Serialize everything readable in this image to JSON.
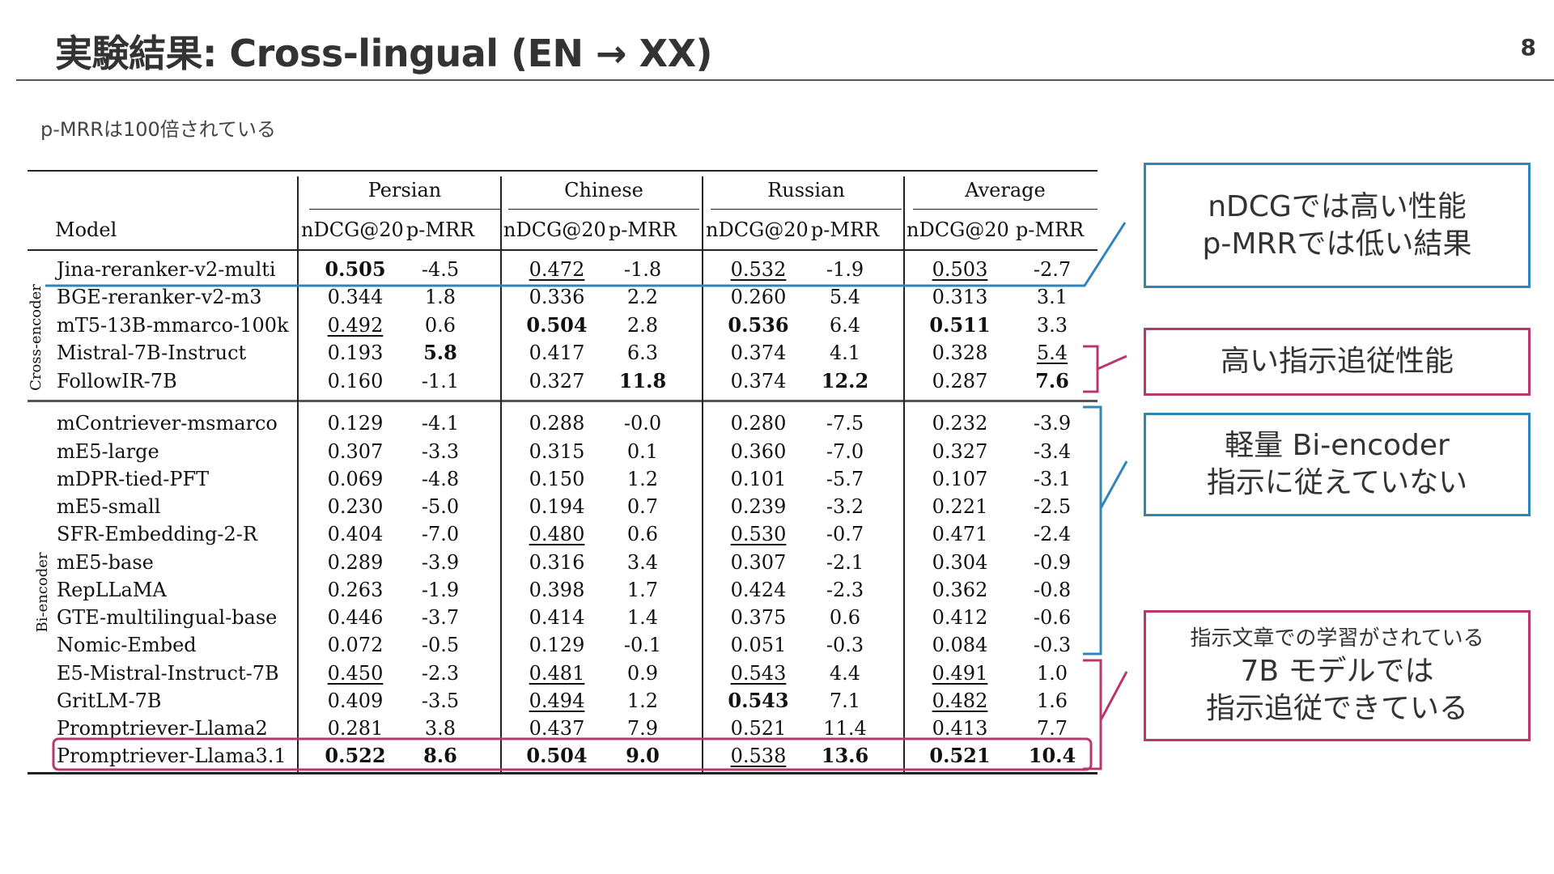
{
  "slide": {
    "title": "実験結果: Cross-lingual (EN → XX)",
    "page_number": "8",
    "note": "p-MRRは100倍されている"
  },
  "table": {
    "model_header": "Model",
    "languages": [
      "Persian",
      "Chinese",
      "Russian",
      "Average"
    ],
    "metrics": [
      "nDCG@20",
      "p-MRR",
      "nDCG@20",
      "p-MRR",
      "nDCG@20",
      "p-MRR",
      "nDCG@20",
      "p-MRR"
    ],
    "groups": [
      {
        "label": "Cross-encoder"
      },
      {
        "label": "Bi-encoder"
      }
    ],
    "rows": [
      {
        "model": "Jina-reranker-v2-multi",
        "cells": [
          {
            "v": "0.505",
            "b": true,
            "u": false
          },
          {
            "v": "-4.5",
            "b": false,
            "u": false
          },
          {
            "v": "0.472",
            "b": false,
            "u": true
          },
          {
            "v": "-1.8",
            "b": false,
            "u": false
          },
          {
            "v": "0.532",
            "b": false,
            "u": true
          },
          {
            "v": "-1.9",
            "b": false,
            "u": false
          },
          {
            "v": "0.503",
            "b": false,
            "u": true
          },
          {
            "v": "-2.7",
            "b": false,
            "u": false
          }
        ]
      },
      {
        "model": "BGE-reranker-v2-m3",
        "cells": [
          {
            "v": "0.344",
            "b": false,
            "u": false
          },
          {
            "v": "1.8",
            "b": false,
            "u": false
          },
          {
            "v": "0.336",
            "b": false,
            "u": false
          },
          {
            "v": "2.2",
            "b": false,
            "u": false
          },
          {
            "v": "0.260",
            "b": false,
            "u": false
          },
          {
            "v": "5.4",
            "b": false,
            "u": false
          },
          {
            "v": "0.313",
            "b": false,
            "u": false
          },
          {
            "v": "3.1",
            "b": false,
            "u": false
          }
        ]
      },
      {
        "model": "mT5-13B-mmarco-100k",
        "cells": [
          {
            "v": "0.492",
            "b": false,
            "u": true
          },
          {
            "v": "0.6",
            "b": false,
            "u": false
          },
          {
            "v": "0.504",
            "b": true,
            "u": false
          },
          {
            "v": "2.8",
            "b": false,
            "u": false
          },
          {
            "v": "0.536",
            "b": true,
            "u": false
          },
          {
            "v": "6.4",
            "b": false,
            "u": false
          },
          {
            "v": "0.511",
            "b": true,
            "u": false
          },
          {
            "v": "3.3",
            "b": false,
            "u": false
          }
        ]
      },
      {
        "model": "Mistral-7B-Instruct",
        "cells": [
          {
            "v": "0.193",
            "b": false,
            "u": false
          },
          {
            "v": "5.8",
            "b": true,
            "u": false
          },
          {
            "v": "0.417",
            "b": false,
            "u": false
          },
          {
            "v": "6.3",
            "b": false,
            "u": false
          },
          {
            "v": "0.374",
            "b": false,
            "u": false
          },
          {
            "v": "4.1",
            "b": false,
            "u": false
          },
          {
            "v": "0.328",
            "b": false,
            "u": false
          },
          {
            "v": "5.4",
            "b": false,
            "u": true
          }
        ]
      },
      {
        "model": "FollowIR-7B",
        "cells": [
          {
            "v": "0.160",
            "b": false,
            "u": false
          },
          {
            "v": "-1.1",
            "b": false,
            "u": false
          },
          {
            "v": "0.327",
            "b": false,
            "u": false
          },
          {
            "v": "11.8",
            "b": true,
            "u": false
          },
          {
            "v": "0.374",
            "b": false,
            "u": false
          },
          {
            "v": "12.2",
            "b": true,
            "u": false
          },
          {
            "v": "0.287",
            "b": false,
            "u": false
          },
          {
            "v": "7.6",
            "b": true,
            "u": false
          }
        ]
      },
      {
        "model": "mContriever-msmarco",
        "cells": [
          {
            "v": "0.129",
            "b": false,
            "u": false
          },
          {
            "v": "-4.1",
            "b": false,
            "u": false
          },
          {
            "v": "0.288",
            "b": false,
            "u": false
          },
          {
            "v": "-0.0",
            "b": false,
            "u": false
          },
          {
            "v": "0.280",
            "b": false,
            "u": false
          },
          {
            "v": "-7.5",
            "b": false,
            "u": false
          },
          {
            "v": "0.232",
            "b": false,
            "u": false
          },
          {
            "v": "-3.9",
            "b": false,
            "u": false
          }
        ]
      },
      {
        "model": "mE5-large",
        "cells": [
          {
            "v": "0.307",
            "b": false,
            "u": false
          },
          {
            "v": "-3.3",
            "b": false,
            "u": false
          },
          {
            "v": "0.315",
            "b": false,
            "u": false
          },
          {
            "v": "0.1",
            "b": false,
            "u": false
          },
          {
            "v": "0.360",
            "b": false,
            "u": false
          },
          {
            "v": "-7.0",
            "b": false,
            "u": false
          },
          {
            "v": "0.327",
            "b": false,
            "u": false
          },
          {
            "v": "-3.4",
            "b": false,
            "u": false
          }
        ]
      },
      {
        "model": "mDPR-tied-PFT",
        "cells": [
          {
            "v": "0.069",
            "b": false,
            "u": false
          },
          {
            "v": "-4.8",
            "b": false,
            "u": false
          },
          {
            "v": "0.150",
            "b": false,
            "u": false
          },
          {
            "v": "1.2",
            "b": false,
            "u": false
          },
          {
            "v": "0.101",
            "b": false,
            "u": false
          },
          {
            "v": "-5.7",
            "b": false,
            "u": false
          },
          {
            "v": "0.107",
            "b": false,
            "u": false
          },
          {
            "v": "-3.1",
            "b": false,
            "u": false
          }
        ]
      },
      {
        "model": "mE5-small",
        "cells": [
          {
            "v": "0.230",
            "b": false,
            "u": false
          },
          {
            "v": "-5.0",
            "b": false,
            "u": false
          },
          {
            "v": "0.194",
            "b": false,
            "u": false
          },
          {
            "v": "0.7",
            "b": false,
            "u": false
          },
          {
            "v": "0.239",
            "b": false,
            "u": false
          },
          {
            "v": "-3.2",
            "b": false,
            "u": false
          },
          {
            "v": "0.221",
            "b": false,
            "u": false
          },
          {
            "v": "-2.5",
            "b": false,
            "u": false
          }
        ]
      },
      {
        "model": "SFR-Embedding-2-R",
        "cells": [
          {
            "v": "0.404",
            "b": false,
            "u": false
          },
          {
            "v": "-7.0",
            "b": false,
            "u": false
          },
          {
            "v": "0.480",
            "b": false,
            "u": true
          },
          {
            "v": "0.6",
            "b": false,
            "u": false
          },
          {
            "v": "0.530",
            "b": false,
            "u": true
          },
          {
            "v": "-0.7",
            "b": false,
            "u": false
          },
          {
            "v": "0.471",
            "b": false,
            "u": false
          },
          {
            "v": "-2.4",
            "b": false,
            "u": false
          }
        ]
      },
      {
        "model": "mE5-base",
        "cells": [
          {
            "v": "0.289",
            "b": false,
            "u": false
          },
          {
            "v": "-3.9",
            "b": false,
            "u": false
          },
          {
            "v": "0.316",
            "b": false,
            "u": false
          },
          {
            "v": "3.4",
            "b": false,
            "u": false
          },
          {
            "v": "0.307",
            "b": false,
            "u": false
          },
          {
            "v": "-2.1",
            "b": false,
            "u": false
          },
          {
            "v": "0.304",
            "b": false,
            "u": false
          },
          {
            "v": "-0.9",
            "b": false,
            "u": false
          }
        ]
      },
      {
        "model": "RepLLaMA",
        "cells": [
          {
            "v": "0.263",
            "b": false,
            "u": false
          },
          {
            "v": "-1.9",
            "b": false,
            "u": false
          },
          {
            "v": "0.398",
            "b": false,
            "u": false
          },
          {
            "v": "1.7",
            "b": false,
            "u": false
          },
          {
            "v": "0.424",
            "b": false,
            "u": false
          },
          {
            "v": "-2.3",
            "b": false,
            "u": false
          },
          {
            "v": "0.362",
            "b": false,
            "u": false
          },
          {
            "v": "-0.8",
            "b": false,
            "u": false
          }
        ]
      },
      {
        "model": "GTE-multilingual-base",
        "cells": [
          {
            "v": "0.446",
            "b": false,
            "u": false
          },
          {
            "v": "-3.7",
            "b": false,
            "u": false
          },
          {
            "v": "0.414",
            "b": false,
            "u": false
          },
          {
            "v": "1.4",
            "b": false,
            "u": false
          },
          {
            "v": "0.375",
            "b": false,
            "u": false
          },
          {
            "v": "0.6",
            "b": false,
            "u": false
          },
          {
            "v": "0.412",
            "b": false,
            "u": false
          },
          {
            "v": "-0.6",
            "b": false,
            "u": false
          }
        ]
      },
      {
        "model": "Nomic-Embed",
        "cells": [
          {
            "v": "0.072",
            "b": false,
            "u": false
          },
          {
            "v": "-0.5",
            "b": false,
            "u": false
          },
          {
            "v": "0.129",
            "b": false,
            "u": false
          },
          {
            "v": "-0.1",
            "b": false,
            "u": false
          },
          {
            "v": "0.051",
            "b": false,
            "u": false
          },
          {
            "v": "-0.3",
            "b": false,
            "u": false
          },
          {
            "v": "0.084",
            "b": false,
            "u": false
          },
          {
            "v": "-0.3",
            "b": false,
            "u": false
          }
        ]
      },
      {
        "model": "E5-Mistral-Instruct-7B",
        "cells": [
          {
            "v": "0.450",
            "b": false,
            "u": true
          },
          {
            "v": "-2.3",
            "b": false,
            "u": false
          },
          {
            "v": "0.481",
            "b": false,
            "u": true
          },
          {
            "v": "0.9",
            "b": false,
            "u": false
          },
          {
            "v": "0.543",
            "b": false,
            "u": true
          },
          {
            "v": "4.4",
            "b": false,
            "u": false
          },
          {
            "v": "0.491",
            "b": false,
            "u": true
          },
          {
            "v": "1.0",
            "b": false,
            "u": false
          }
        ]
      },
      {
        "model": "GritLM-7B",
        "cells": [
          {
            "v": "0.409",
            "b": false,
            "u": false
          },
          {
            "v": "-3.5",
            "b": false,
            "u": false
          },
          {
            "v": "0.494",
            "b": false,
            "u": true
          },
          {
            "v": "1.2",
            "b": false,
            "u": false
          },
          {
            "v": "0.543",
            "b": true,
            "u": false
          },
          {
            "v": "7.1",
            "b": false,
            "u": false
          },
          {
            "v": "0.482",
            "b": false,
            "u": true
          },
          {
            "v": "1.6",
            "b": false,
            "u": false
          }
        ]
      },
      {
        "model": "Promptriever-Llama2",
        "cells": [
          {
            "v": "0.281",
            "b": false,
            "u": false
          },
          {
            "v": "3.8",
            "b": false,
            "u": false
          },
          {
            "v": "0.437",
            "b": false,
            "u": false
          },
          {
            "v": "7.9",
            "b": false,
            "u": true
          },
          {
            "v": "0.521",
            "b": false,
            "u": true
          },
          {
            "v": "11.4",
            "b": false,
            "u": true
          },
          {
            "v": "0.413",
            "b": false,
            "u": false
          },
          {
            "v": "7.7",
            "b": false,
            "u": true
          }
        ]
      },
      {
        "model": "Promptriever-Llama3.1",
        "cells": [
          {
            "v": "0.522",
            "b": true,
            "u": false
          },
          {
            "v": "8.6",
            "b": true,
            "u": false
          },
          {
            "v": "0.504",
            "b": true,
            "u": false
          },
          {
            "v": "9.0",
            "b": true,
            "u": false
          },
          {
            "v": "0.538",
            "b": false,
            "u": true
          },
          {
            "v": "13.6",
            "b": true,
            "u": false
          },
          {
            "v": "0.521",
            "b": true,
            "u": false
          },
          {
            "v": "10.4",
            "b": true,
            "u": false
          }
        ]
      }
    ]
  },
  "callouts": [
    {
      "lines": [
        "nDCGでは高い性能",
        "p-MRRでは低い結果"
      ],
      "color": "#2e86b8"
    },
    {
      "lines": [
        "高い指示追従性能"
      ],
      "color": "#b8386e"
    },
    {
      "lines": [
        "軽量 Bi-encoder",
        "指示に従えていない"
      ],
      "color": "#2e86b8"
    },
    {
      "small": "指示文章での学習がされている",
      "lines": [
        "7B モデルでは",
        "指示追従できている"
      ],
      "color": "#b8386e"
    }
  ],
  "colors": {
    "blue": "#2e86b8",
    "magenta": "#b8386e",
    "rule": "#222222"
  }
}
